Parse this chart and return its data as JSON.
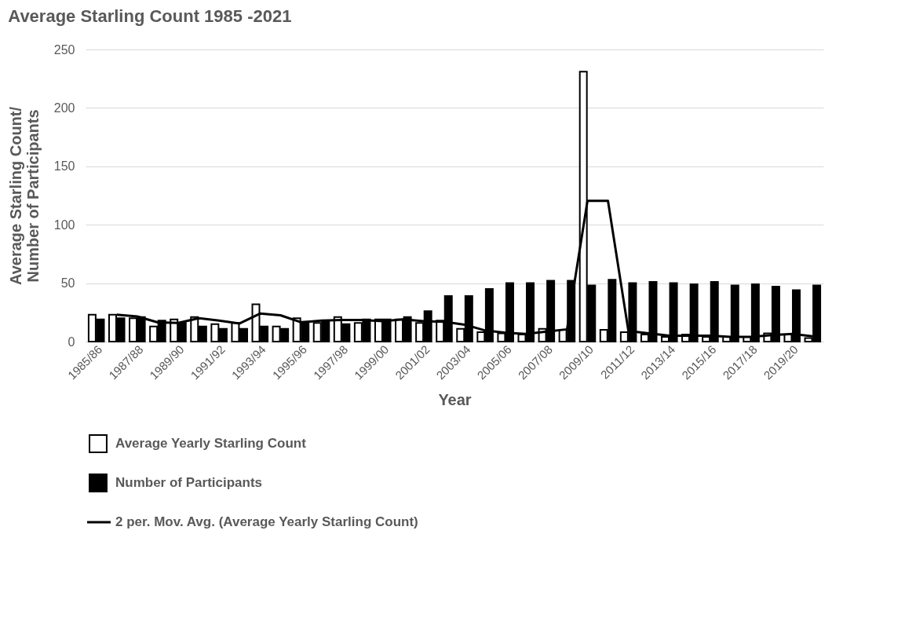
{
  "chart_data": {
    "type": "bar",
    "title": "Average Starling Count 1985 -2021",
    "xlabel": "Year",
    "ylabel": "Average Starling Count/\nNumber of Participants",
    "categories": [
      "1985/86",
      null,
      "1987/88",
      null,
      "1989/90",
      null,
      "1991/92",
      null,
      "1993/94",
      null,
      "1995/96",
      null,
      "1997/98",
      null,
      "1999/00",
      null,
      "2001/02",
      null,
      "2003/04",
      null,
      "2005/06",
      null,
      "2007/08",
      null,
      "2009/10",
      null,
      "2011/12",
      null,
      "2013/14",
      null,
      "2015/16",
      null,
      "2017/18",
      null,
      "2019/20",
      null
    ],
    "series": [
      {
        "name": "Average Yearly Starling Count",
        "color": "#ffffff",
        "values": [
          23,
          23,
          20,
          13,
          19,
          21,
          15,
          16,
          32,
          13,
          20,
          16,
          21,
          16,
          19,
          19,
          16,
          18,
          11,
          8,
          7,
          6,
          11,
          10,
          231,
          10,
          8,
          6,
          4,
          6,
          4,
          4,
          4,
          7,
          6,
          3
        ]
      },
      {
        "name": "Number of Participants",
        "color": "#000000",
        "values": [
          19,
          20,
          21,
          18,
          16,
          13,
          11,
          11,
          13,
          11,
          17,
          17,
          15,
          19,
          19,
          21,
          26,
          39,
          39,
          45,
          50,
          50,
          52,
          52,
          48,
          53,
          50,
          51,
          50,
          49,
          51,
          48,
          49,
          47,
          44,
          48
        ]
      },
      {
        "name": "2 per. Mov. Avg. (Average Yearly Starling Count)",
        "type": "line",
        "color": "#000000",
        "values": [
          null,
          23,
          21.5,
          16.5,
          16,
          20,
          18,
          15.5,
          24,
          22.5,
          16.5,
          18,
          18.5,
          18.5,
          17.5,
          19,
          17.5,
          17,
          14.5,
          9.5,
          7.5,
          6.5,
          8.5,
          10.5,
          120.5,
          120.5,
          9,
          7,
          5,
          5,
          5,
          4,
          4,
          5.5,
          6.5,
          4.5
        ]
      }
    ],
    "ylim": [
      0,
      250
    ],
    "yticks": [
      0,
      50,
      100,
      150,
      200,
      250
    ],
    "grid": "y",
    "legend": "bottom"
  }
}
